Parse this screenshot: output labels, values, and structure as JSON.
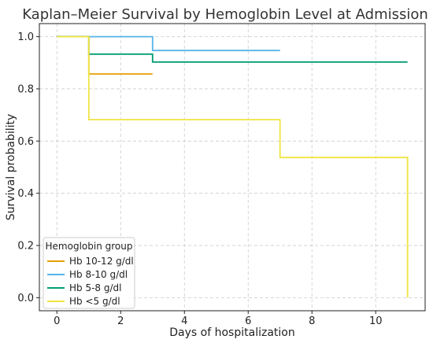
{
  "chart_data": {
    "type": "line",
    "step": true,
    "title": "Kaplan–Meier Survival by Hemoglobin Level at Admission",
    "xlabel": "Days of hospitalization",
    "ylabel": "Survival probability",
    "xlim": [
      -0.55,
      11.55
    ],
    "ylim": [
      -0.05,
      1.05
    ],
    "xticks": [
      0,
      2,
      4,
      6,
      8,
      10
    ],
    "yticks": [
      0.0,
      0.2,
      0.4,
      0.6,
      0.8,
      1.0
    ],
    "xtick_labels": [
      "0",
      "2",
      "4",
      "6",
      "8",
      "10"
    ],
    "ytick_labels": [
      "0.0",
      "0.2",
      "0.4",
      "0.6",
      "0.8",
      "1.0"
    ],
    "grid": true,
    "legend": {
      "title": "Hemoglobin group",
      "position": "bottom-left"
    },
    "series": [
      {
        "name": "Hb 10-12 g/dl",
        "color": "#e69f00",
        "x": [
          0,
          1,
          1,
          3
        ],
        "y": [
          1.0,
          1.0,
          0.857,
          0.857
        ]
      },
      {
        "name": "Hb 8-10 g/dl",
        "color": "#56b4e9",
        "x": [
          0,
          3,
          3,
          7
        ],
        "y": [
          1.0,
          1.0,
          0.947,
          0.947
        ]
      },
      {
        "name": "Hb 5-8 g/dl",
        "color": "#009e73",
        "x": [
          0,
          1,
          1,
          3,
          3,
          11
        ],
        "y": [
          1.0,
          1.0,
          0.933,
          0.933,
          0.903,
          0.903
        ]
      },
      {
        "name": "Hb <5 g/dl",
        "color": "#f0e442",
        "x": [
          0,
          1,
          1,
          7,
          7,
          11,
          11
        ],
        "y": [
          1.0,
          1.0,
          0.682,
          0.682,
          0.537,
          0.537,
          0.0
        ]
      }
    ]
  }
}
